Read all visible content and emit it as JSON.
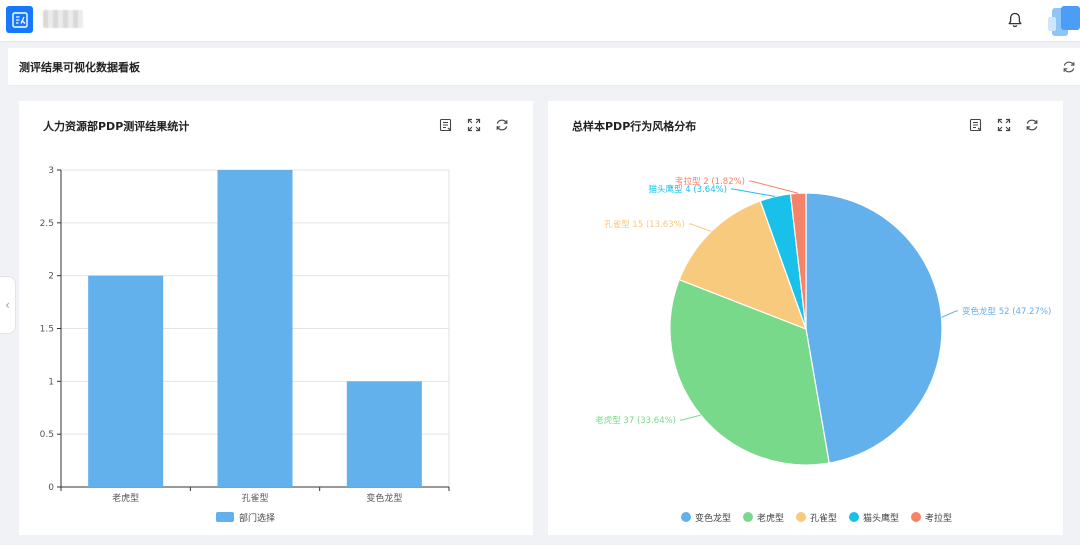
{
  "colors": {
    "blue": "#62b0ec",
    "green": "#79d98b",
    "orange": "#f8ca7d",
    "cyan": "#19c1ea",
    "red": "#f5836a",
    "brand": "#1677ff"
  },
  "icons": {
    "logo": "report-logo-icon",
    "bell": "bell-icon",
    "refresh": "refresh-icon",
    "detail": "detail-icon",
    "fullscreen": "fullscreen-icon",
    "chevron": "chevron-left-icon"
  },
  "header": {
    "panel_title": "测评结果可视化数据看板"
  },
  "sidebar_toggle": "‹",
  "chart_data": [
    {
      "type": "bar",
      "title": "人力资源部PDP测评结果统计",
      "categories": [
        "老虎型",
        "孔雀型",
        "变色龙型"
      ],
      "series": [
        {
          "name": "部门选择",
          "values": [
            2,
            3,
            1
          ],
          "color": "#62b0ec"
        }
      ],
      "ylim": [
        0,
        3
      ],
      "yticks": [
        "0",
        "0.5",
        "1",
        "1.5",
        "2",
        "2.5",
        "3"
      ],
      "grid": true,
      "legend": "bottom"
    },
    {
      "type": "pie",
      "title": "总样本PDP行为风格分布",
      "slices": [
        {
          "name": "变色龙型",
          "value": 52,
          "percent": "47.27%",
          "label": "变色龙型 52 (47.27%)",
          "color": "#62b0ec"
        },
        {
          "name": "老虎型",
          "value": 37,
          "percent": "33.64%",
          "label": "老虎型 37 (33.64%)",
          "color": "#79d98b"
        },
        {
          "name": "孔雀型",
          "value": 15,
          "percent": "13.63%",
          "label": "孔雀型 15 (13.63%)",
          "color": "#f8ca7d"
        },
        {
          "name": "猫头鹰型",
          "value": 4,
          "percent": "3.64%",
          "label": "猫头鹰型 4 (3.64%)",
          "color": "#19c1ea"
        },
        {
          "name": "考拉型",
          "value": 2,
          "percent": "1.82%",
          "label": "考拉型 2 (1.82%)",
          "color": "#f5836a"
        }
      ],
      "legend": "bottom"
    }
  ]
}
